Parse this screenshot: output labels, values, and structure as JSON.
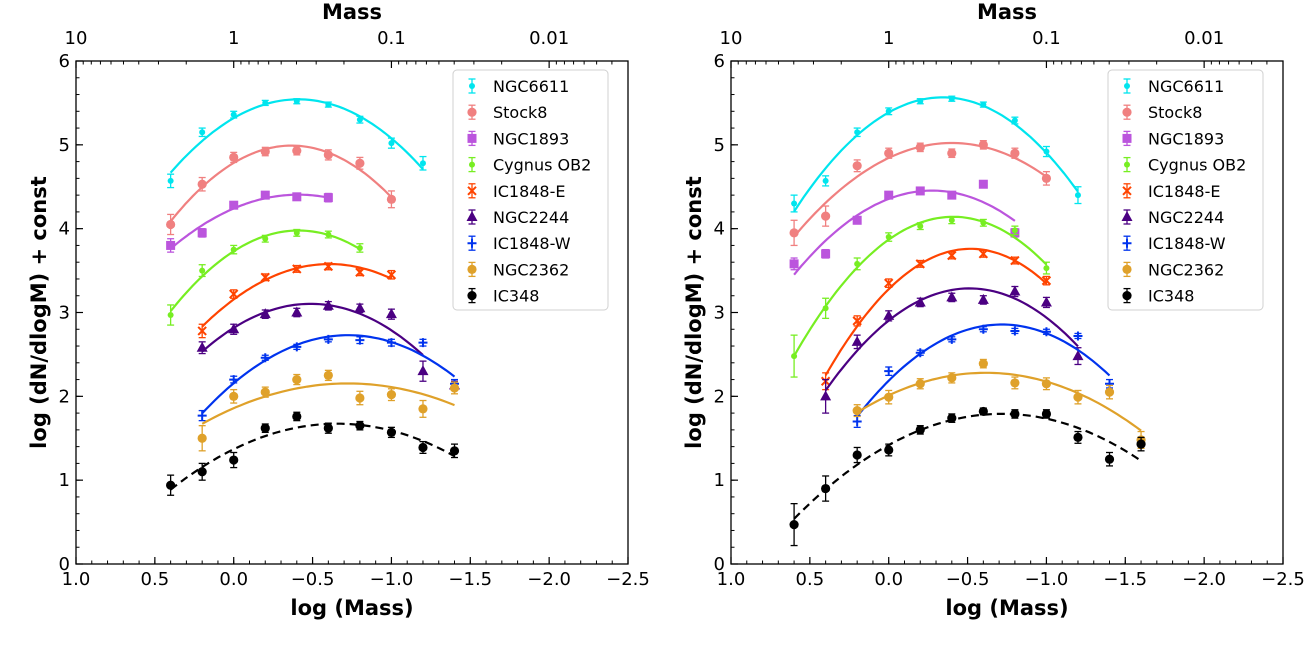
{
  "chart_data": [
    {
      "type": "scatter",
      "panel": "left",
      "xlabel": "log (Mass)",
      "ylabel": "log (dN/dlogM) + const",
      "top_xlabel": "Mass",
      "xlim": [
        1.0,
        -2.5
      ],
      "ylim": [
        0,
        6
      ],
      "xticks": [
        1.0,
        0.5,
        0.0,
        -0.5,
        -1.0,
        -1.5,
        -2.0,
        -2.5
      ],
      "xtick_labels": [
        "1.0",
        "0.5",
        "0.0",
        "−0.5",
        "−1.0",
        "−1.5",
        "−2.0",
        "−2.5"
      ],
      "yticks": [
        0,
        1,
        2,
        3,
        4,
        5,
        6
      ],
      "ytick_labels": [
        "0",
        "1",
        "2",
        "3",
        "4",
        "5",
        "6"
      ],
      "top_xticks": [
        1,
        0,
        -1,
        -2
      ],
      "top_xtick_labels": [
        "10",
        "1",
        "0.1",
        "0.01"
      ],
      "legend_position": "top-right",
      "series": [
        {
          "name": "NGC6611",
          "color": "#00e5ee",
          "marker": "dot",
          "x": [
            0.4,
            0.2,
            0.0,
            -0.2,
            -0.4,
            -0.6,
            -0.8,
            -1.0,
            -1.2
          ],
          "y": [
            4.57,
            5.15,
            5.36,
            5.5,
            5.52,
            5.48,
            5.3,
            5.02,
            4.78
          ],
          "err": [
            0.08,
            0.05,
            0.04,
            0.03,
            0.03,
            0.03,
            0.04,
            0.06,
            0.08
          ],
          "fit": {
            "x0": 0.4,
            "x1": -1.2,
            "style": "solid"
          }
        },
        {
          "name": "Stock8",
          "color": "#f08080",
          "marker": "circle",
          "x": [
            0.4,
            0.2,
            0.0,
            -0.2,
            -0.4,
            -0.6,
            -0.8,
            -1.0
          ],
          "y": [
            4.05,
            4.53,
            4.85,
            4.92,
            4.93,
            4.88,
            4.78,
            4.35
          ],
          "err": [
            0.12,
            0.08,
            0.06,
            0.05,
            0.05,
            0.06,
            0.07,
            0.1
          ],
          "fit": {
            "x0": 0.4,
            "x1": -1.0,
            "style": "solid"
          }
        },
        {
          "name": "NGC1893",
          "color": "#bb55dd",
          "marker": "square",
          "x": [
            0.4,
            0.2,
            0.0,
            -0.2,
            -0.4,
            -0.6
          ],
          "y": [
            3.8,
            3.95,
            4.28,
            4.4,
            4.38,
            4.37
          ],
          "err": [
            0.08,
            0.05,
            0.04,
            0.04,
            0.04,
            0.05
          ],
          "fit": {
            "x0": 0.4,
            "x1": -0.6,
            "style": "solid"
          }
        },
        {
          "name": "Cygnus OB2",
          "color": "#77ee22",
          "marker": "dot",
          "x": [
            0.4,
            0.2,
            0.0,
            -0.2,
            -0.4,
            -0.6,
            -0.8
          ],
          "y": [
            2.97,
            3.5,
            3.75,
            3.88,
            3.95,
            3.93,
            3.77
          ],
          "err": [
            0.12,
            0.07,
            0.05,
            0.04,
            0.04,
            0.04,
            0.05
          ],
          "fit": {
            "x0": 0.4,
            "x1": -0.8,
            "style": "solid"
          }
        },
        {
          "name": "IC1848-E",
          "color": "#ff4400",
          "marker": "x",
          "x": [
            0.2,
            0.0,
            -0.2,
            -0.4,
            -0.6,
            -0.8,
            -1.0
          ],
          "y": [
            2.78,
            3.22,
            3.42,
            3.52,
            3.55,
            3.48,
            3.45
          ],
          "err": [
            0.08,
            0.05,
            0.04,
            0.04,
            0.04,
            0.04,
            0.05
          ],
          "fit": {
            "x0": 0.2,
            "x1": -1.0,
            "style": "solid"
          }
        },
        {
          "name": "NGC2244",
          "color": "#4b0082",
          "marker": "triangle",
          "x": [
            0.2,
            0.0,
            -0.2,
            -0.4,
            -0.6,
            -0.8,
            -1.0,
            -1.2,
            -1.4
          ],
          "y": [
            2.58,
            2.8,
            2.98,
            3.0,
            3.08,
            3.05,
            2.98,
            2.3,
            2.13
          ],
          "err": [
            0.07,
            0.06,
            0.05,
            0.05,
            0.05,
            0.05,
            0.06,
            0.12,
            0.05
          ],
          "fit": {
            "x0": 0.2,
            "x1": -1.2,
            "style": "solid"
          }
        },
        {
          "name": "IC1848-W",
          "color": "#0033ee",
          "marker": "plus",
          "x": [
            0.2,
            0.0,
            -0.2,
            -0.4,
            -0.6,
            -0.8,
            -1.0,
            -1.2,
            -1.4
          ],
          "y": [
            1.77,
            2.2,
            2.46,
            2.59,
            2.68,
            2.67,
            2.64,
            2.64,
            2.15
          ],
          "err": [
            0.06,
            0.04,
            0.03,
            0.03,
            0.03,
            0.04,
            0.04,
            0.04,
            0.05
          ],
          "fit": {
            "x0": 0.2,
            "x1": -1.4,
            "style": "solid"
          }
        },
        {
          "name": "NGC2362",
          "color": "#dfa12a",
          "marker": "circle",
          "x": [
            0.2,
            0.0,
            -0.2,
            -0.4,
            -0.6,
            -0.8,
            -1.0,
            -1.2,
            -1.4
          ],
          "y": [
            1.5,
            2.0,
            2.05,
            2.2,
            2.25,
            1.98,
            2.02,
            1.85,
            2.1
          ],
          "err": [
            0.15,
            0.08,
            0.06,
            0.06,
            0.06,
            0.08,
            0.07,
            0.1,
            0.07
          ],
          "fit": {
            "x0": 0.2,
            "x1": -1.4,
            "style": "solid"
          }
        },
        {
          "name": "IC348",
          "color": "#000000",
          "marker": "circle",
          "x": [
            0.4,
            0.2,
            0.0,
            -0.2,
            -0.4,
            -0.6,
            -0.8,
            -1.0,
            -1.2,
            -1.4
          ],
          "y": [
            0.94,
            1.1,
            1.24,
            1.62,
            1.76,
            1.62,
            1.65,
            1.57,
            1.39,
            1.35
          ],
          "err": [
            0.12,
            0.1,
            0.09,
            0.05,
            0.05,
            0.06,
            0.05,
            0.06,
            0.07,
            0.08
          ],
          "fit": {
            "x0": 0.4,
            "x1": -1.4,
            "style": "dashed"
          }
        }
      ]
    },
    {
      "type": "scatter",
      "panel": "right",
      "xlabel": "log (Mass)",
      "ylabel": "log (dN/dlogM) + const",
      "top_xlabel": "Mass",
      "xlim": [
        1.0,
        -2.5
      ],
      "ylim": [
        0,
        6
      ],
      "xticks": [
        1.0,
        0.5,
        0.0,
        -0.5,
        -1.0,
        -1.5,
        -2.0,
        -2.5
      ],
      "xtick_labels": [
        "1.0",
        "0.5",
        "0.0",
        "−0.5",
        "−1.0",
        "−1.5",
        "−2.0",
        "−2.5"
      ],
      "yticks": [
        0,
        1,
        2,
        3,
        4,
        5,
        6
      ],
      "ytick_labels": [
        "0",
        "1",
        "2",
        "3",
        "4",
        "5",
        "6"
      ],
      "top_xticks": [
        1,
        0,
        -1,
        -2
      ],
      "top_xtick_labels": [
        "10",
        "1",
        "0.1",
        "0.01"
      ],
      "legend_position": "top-right",
      "series": [
        {
          "name": "NGC6611",
          "color": "#00e5ee",
          "marker": "dot",
          "x": [
            0.6,
            0.4,
            0.2,
            0.0,
            -0.2,
            -0.4,
            -0.6,
            -0.8,
            -1.0,
            -1.2
          ],
          "y": [
            4.3,
            4.57,
            5.15,
            5.4,
            5.52,
            5.55,
            5.48,
            5.29,
            4.92,
            4.4
          ],
          "err": [
            0.1,
            0.06,
            0.05,
            0.04,
            0.03,
            0.03,
            0.03,
            0.04,
            0.06,
            0.1
          ],
          "fit": {
            "x0": 0.6,
            "x1": -1.2,
            "style": "solid"
          }
        },
        {
          "name": "Stock8",
          "color": "#f08080",
          "marker": "circle",
          "x": [
            0.6,
            0.4,
            0.2,
            0.0,
            -0.2,
            -0.4,
            -0.6,
            -0.8,
            -1.0
          ],
          "y": [
            3.95,
            4.15,
            4.75,
            4.9,
            4.97,
            4.9,
            5.0,
            4.9,
            4.6
          ],
          "err": [
            0.15,
            0.12,
            0.07,
            0.06,
            0.05,
            0.05,
            0.05,
            0.06,
            0.08
          ],
          "fit": {
            "x0": 0.6,
            "x1": -1.0,
            "style": "solid"
          }
        },
        {
          "name": "NGC1893",
          "color": "#bb55dd",
          "marker": "square",
          "x": [
            0.6,
            0.4,
            0.2,
            0.0,
            -0.2,
            -0.4,
            -0.6,
            -0.8
          ],
          "y": [
            3.58,
            3.7,
            4.1,
            4.4,
            4.45,
            4.4,
            4.53,
            3.95
          ],
          "err": [
            0.07,
            0.05,
            0.04,
            0.04,
            0.04,
            0.04,
            0.04,
            0.05
          ],
          "fit": {
            "x0": 0.6,
            "x1": -0.8,
            "style": "solid"
          }
        },
        {
          "name": "Cygnus OB2",
          "color": "#77ee22",
          "marker": "dot",
          "x": [
            0.6,
            0.4,
            0.2,
            0.0,
            -0.2,
            -0.4,
            -0.6,
            -0.8,
            -1.0
          ],
          "y": [
            2.48,
            3.05,
            3.58,
            3.9,
            4.03,
            4.1,
            4.07,
            3.98,
            3.53
          ],
          "err": [
            0.25,
            0.12,
            0.07,
            0.05,
            0.04,
            0.04,
            0.04,
            0.05,
            0.07
          ],
          "fit": {
            "x0": 0.6,
            "x1": -1.0,
            "style": "solid"
          }
        },
        {
          "name": "IC1848-E",
          "color": "#ff4400",
          "marker": "x",
          "x": [
            0.4,
            0.2,
            0.0,
            -0.2,
            -0.4,
            -0.6,
            -0.8,
            -1.0
          ],
          "y": [
            2.18,
            2.9,
            3.35,
            3.58,
            3.68,
            3.7,
            3.62,
            3.38
          ],
          "err": [
            0.1,
            0.06,
            0.05,
            0.04,
            0.04,
            0.04,
            0.04,
            0.05
          ],
          "fit": {
            "x0": 0.4,
            "x1": -1.0,
            "style": "solid"
          }
        },
        {
          "name": "NGC2244",
          "color": "#4b0082",
          "marker": "triangle",
          "x": [
            0.4,
            0.2,
            0.0,
            -0.2,
            -0.4,
            -0.6,
            -0.8,
            -1.0,
            -1.2
          ],
          "y": [
            2.0,
            2.65,
            2.96,
            3.12,
            3.18,
            3.15,
            3.25,
            3.12,
            2.48
          ],
          "err": [
            0.2,
            0.08,
            0.06,
            0.05,
            0.05,
            0.05,
            0.06,
            0.06,
            0.1
          ],
          "fit": {
            "x0": 0.4,
            "x1": -1.2,
            "style": "solid"
          }
        },
        {
          "name": "IC1848-W",
          "color": "#0033ee",
          "marker": "plus",
          "x": [
            0.2,
            0.0,
            -0.2,
            -0.4,
            -0.6,
            -0.8,
            -1.0,
            -1.2,
            -1.4
          ],
          "y": [
            1.7,
            2.3,
            2.52,
            2.68,
            2.8,
            2.78,
            2.77,
            2.72,
            2.15
          ],
          "err": [
            0.07,
            0.05,
            0.03,
            0.03,
            0.03,
            0.03,
            0.03,
            0.03,
            0.05
          ],
          "fit": {
            "x0": 0.2,
            "x1": -1.4,
            "style": "solid"
          }
        },
        {
          "name": "NGC2362",
          "color": "#dfa12a",
          "marker": "circle",
          "x": [
            0.2,
            0.0,
            -0.2,
            -0.4,
            -0.6,
            -0.8,
            -1.0,
            -1.2,
            -1.4,
            -1.6
          ],
          "y": [
            1.83,
            1.99,
            2.15,
            2.22,
            2.39,
            2.16,
            2.15,
            1.99,
            2.05,
            1.48
          ],
          "err": [
            0.07,
            0.08,
            0.06,
            0.06,
            0.05,
            0.07,
            0.07,
            0.08,
            0.08,
            0.1
          ],
          "fit": {
            "x0": 0.2,
            "x1": -1.6,
            "style": "solid"
          }
        },
        {
          "name": "IC348",
          "color": "#000000",
          "marker": "circle",
          "x": [
            0.6,
            0.4,
            0.2,
            0.0,
            -0.2,
            -0.4,
            -0.6,
            -0.8,
            -1.0,
            -1.2,
            -1.4,
            -1.6
          ],
          "y": [
            0.47,
            0.9,
            1.3,
            1.36,
            1.6,
            1.74,
            1.82,
            1.79,
            1.79,
            1.51,
            1.25,
            1.43
          ],
          "err": [
            0.25,
            0.15,
            0.09,
            0.07,
            0.05,
            0.05,
            0.04,
            0.05,
            0.05,
            0.07,
            0.08,
            0.08
          ],
          "fit": {
            "x0": 0.6,
            "x1": -1.6,
            "style": "dashed"
          }
        }
      ]
    }
  ]
}
